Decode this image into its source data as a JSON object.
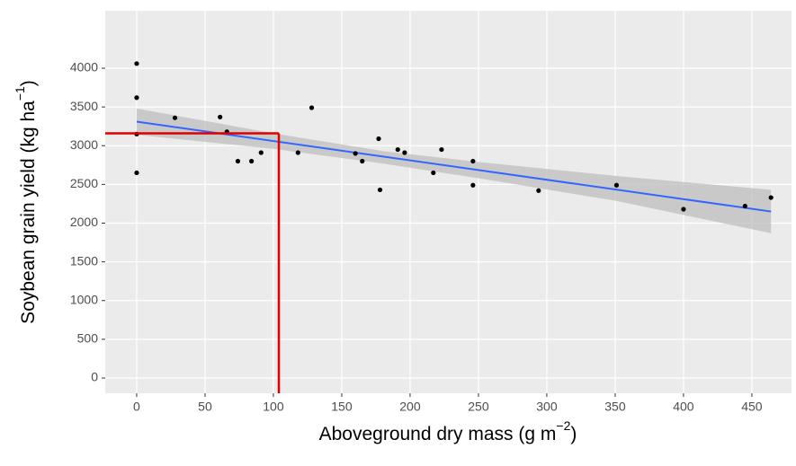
{
  "chart_data": {
    "type": "scatter",
    "x_label": {
      "text": "Aboveground  dry mass (g m",
      "sup": "−2",
      "close": ")"
    },
    "y_label": {
      "text": "Soybean  grain yield (kg ha",
      "sup": "−1",
      "close": ")"
    },
    "xlim": [
      -23,
      479
    ],
    "ylim": [
      -197,
      4742
    ],
    "xticks": [
      0,
      50,
      100,
      150,
      200,
      250,
      300,
      350,
      400,
      450
    ],
    "yticks": [
      0,
      500,
      1000,
      1500,
      2000,
      2500,
      3000,
      3500,
      4000
    ],
    "grid": true,
    "series": [
      {
        "color": "#000000",
        "x": [
          0,
          0,
          0,
          0,
          28,
          61,
          66,
          74,
          84,
          91,
          118,
          128,
          160,
          165,
          177,
          178,
          191,
          196,
          217,
          223,
          246,
          246,
          294,
          351,
          400,
          445,
          464
        ],
        "values": [
          4060,
          3620,
          3150,
          2650,
          3360,
          3370,
          3180,
          2800,
          2800,
          2910,
          2910,
          3490,
          2900,
          2800,
          3090,
          2430,
          2950,
          2910,
          2650,
          2950,
          2800,
          2490,
          2420,
          2490,
          2180,
          2220,
          2330
        ]
      }
    ],
    "fit": {
      "color": "#3366ff",
      "x": [
        0,
        464
      ],
      "y": [
        3310,
        2150
      ]
    },
    "band": {
      "color": "#bdbdbd",
      "x": [
        0,
        100,
        180,
        250,
        350,
        464
      ],
      "upper": [
        3480,
        3160,
        2930,
        2790,
        2610,
        2430
      ],
      "lower": [
        3140,
        2960,
        2770,
        2580,
        2290,
        1870
      ]
    },
    "reference": {
      "color": "#e00000",
      "x": 104,
      "y": 3160
    }
  }
}
